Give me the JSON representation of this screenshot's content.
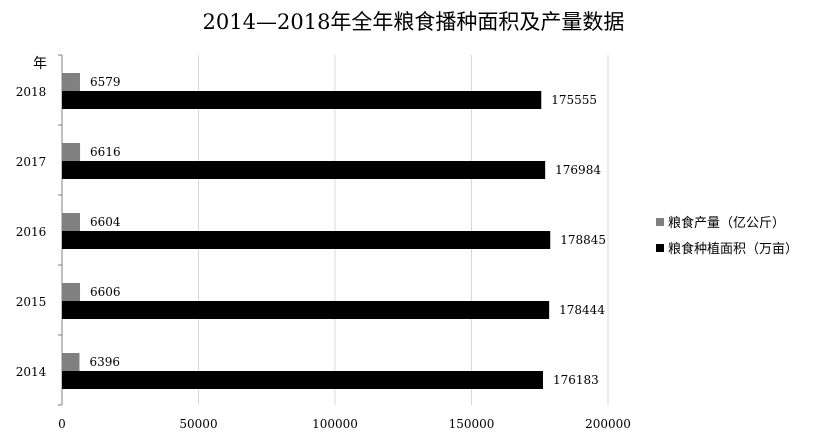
{
  "chart_data": {
    "type": "bar",
    "orientation": "horizontal",
    "title": "2014—2018年全年粮食播种面积及产量数据",
    "y_axis_unit_label": "年",
    "categories": [
      "2018",
      "2017",
      "2016",
      "2015",
      "2014"
    ],
    "series": [
      {
        "name": "粮食产量（亿公斤）",
        "color": "#808080",
        "values": [
          6579,
          6616,
          6604,
          6606,
          6396
        ]
      },
      {
        "name": "粮食种植面积（万亩）",
        "color": "#000000",
        "values": [
          175555,
          176984,
          178845,
          178444,
          176183
        ]
      }
    ],
    "x_ticks": [
      "0",
      "50000",
      "100000",
      "150000",
      "200000"
    ],
    "xlim": [
      0,
      200000
    ],
    "grid": true,
    "legend_position": "right"
  }
}
